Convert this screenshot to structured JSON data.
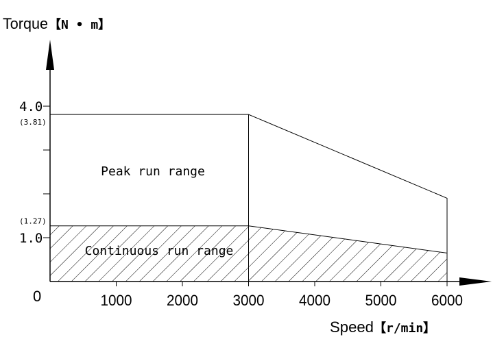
{
  "chart_data": {
    "type": "area",
    "ylabel": "Torque",
    "ylabel_unit": "【N • m】",
    "xlabel": "Speed",
    "xlabel_unit": "【r/min】",
    "origin_label": "0",
    "x_ticks": [
      "1000",
      "2000",
      "3000",
      "4000",
      "5000",
      "6000"
    ],
    "x_tick_values": [
      1000,
      2000,
      3000,
      4000,
      5000,
      6000
    ],
    "y_ticks": [
      {
        "label": "4.0",
        "value": 4.0
      },
      {
        "label": "1.0",
        "value": 1.0
      }
    ],
    "y_sublabels": [
      {
        "label": "(3.81)",
        "value": 3.81
      },
      {
        "label": "(1.27)",
        "value": 1.27
      }
    ],
    "y_minor_ticks": [
      2.0,
      3.0
    ],
    "xlim": [
      0,
      6000
    ],
    "ylim": [
      0,
      4.0
    ],
    "grid": false,
    "series": [
      {
        "name": "Peak run range",
        "x": [
          0,
          3000,
          6000,
          6000
        ],
        "y": [
          3.81,
          3.81,
          1.9,
          0
        ]
      },
      {
        "name": "Continuous run range",
        "x": [
          0,
          3000,
          6000,
          6000
        ],
        "y": [
          1.27,
          1.27,
          0.65,
          0
        ],
        "hatched": true
      }
    ],
    "region_labels": {
      "peak": "Peak run range",
      "continuous": "Continuous run range"
    }
  }
}
